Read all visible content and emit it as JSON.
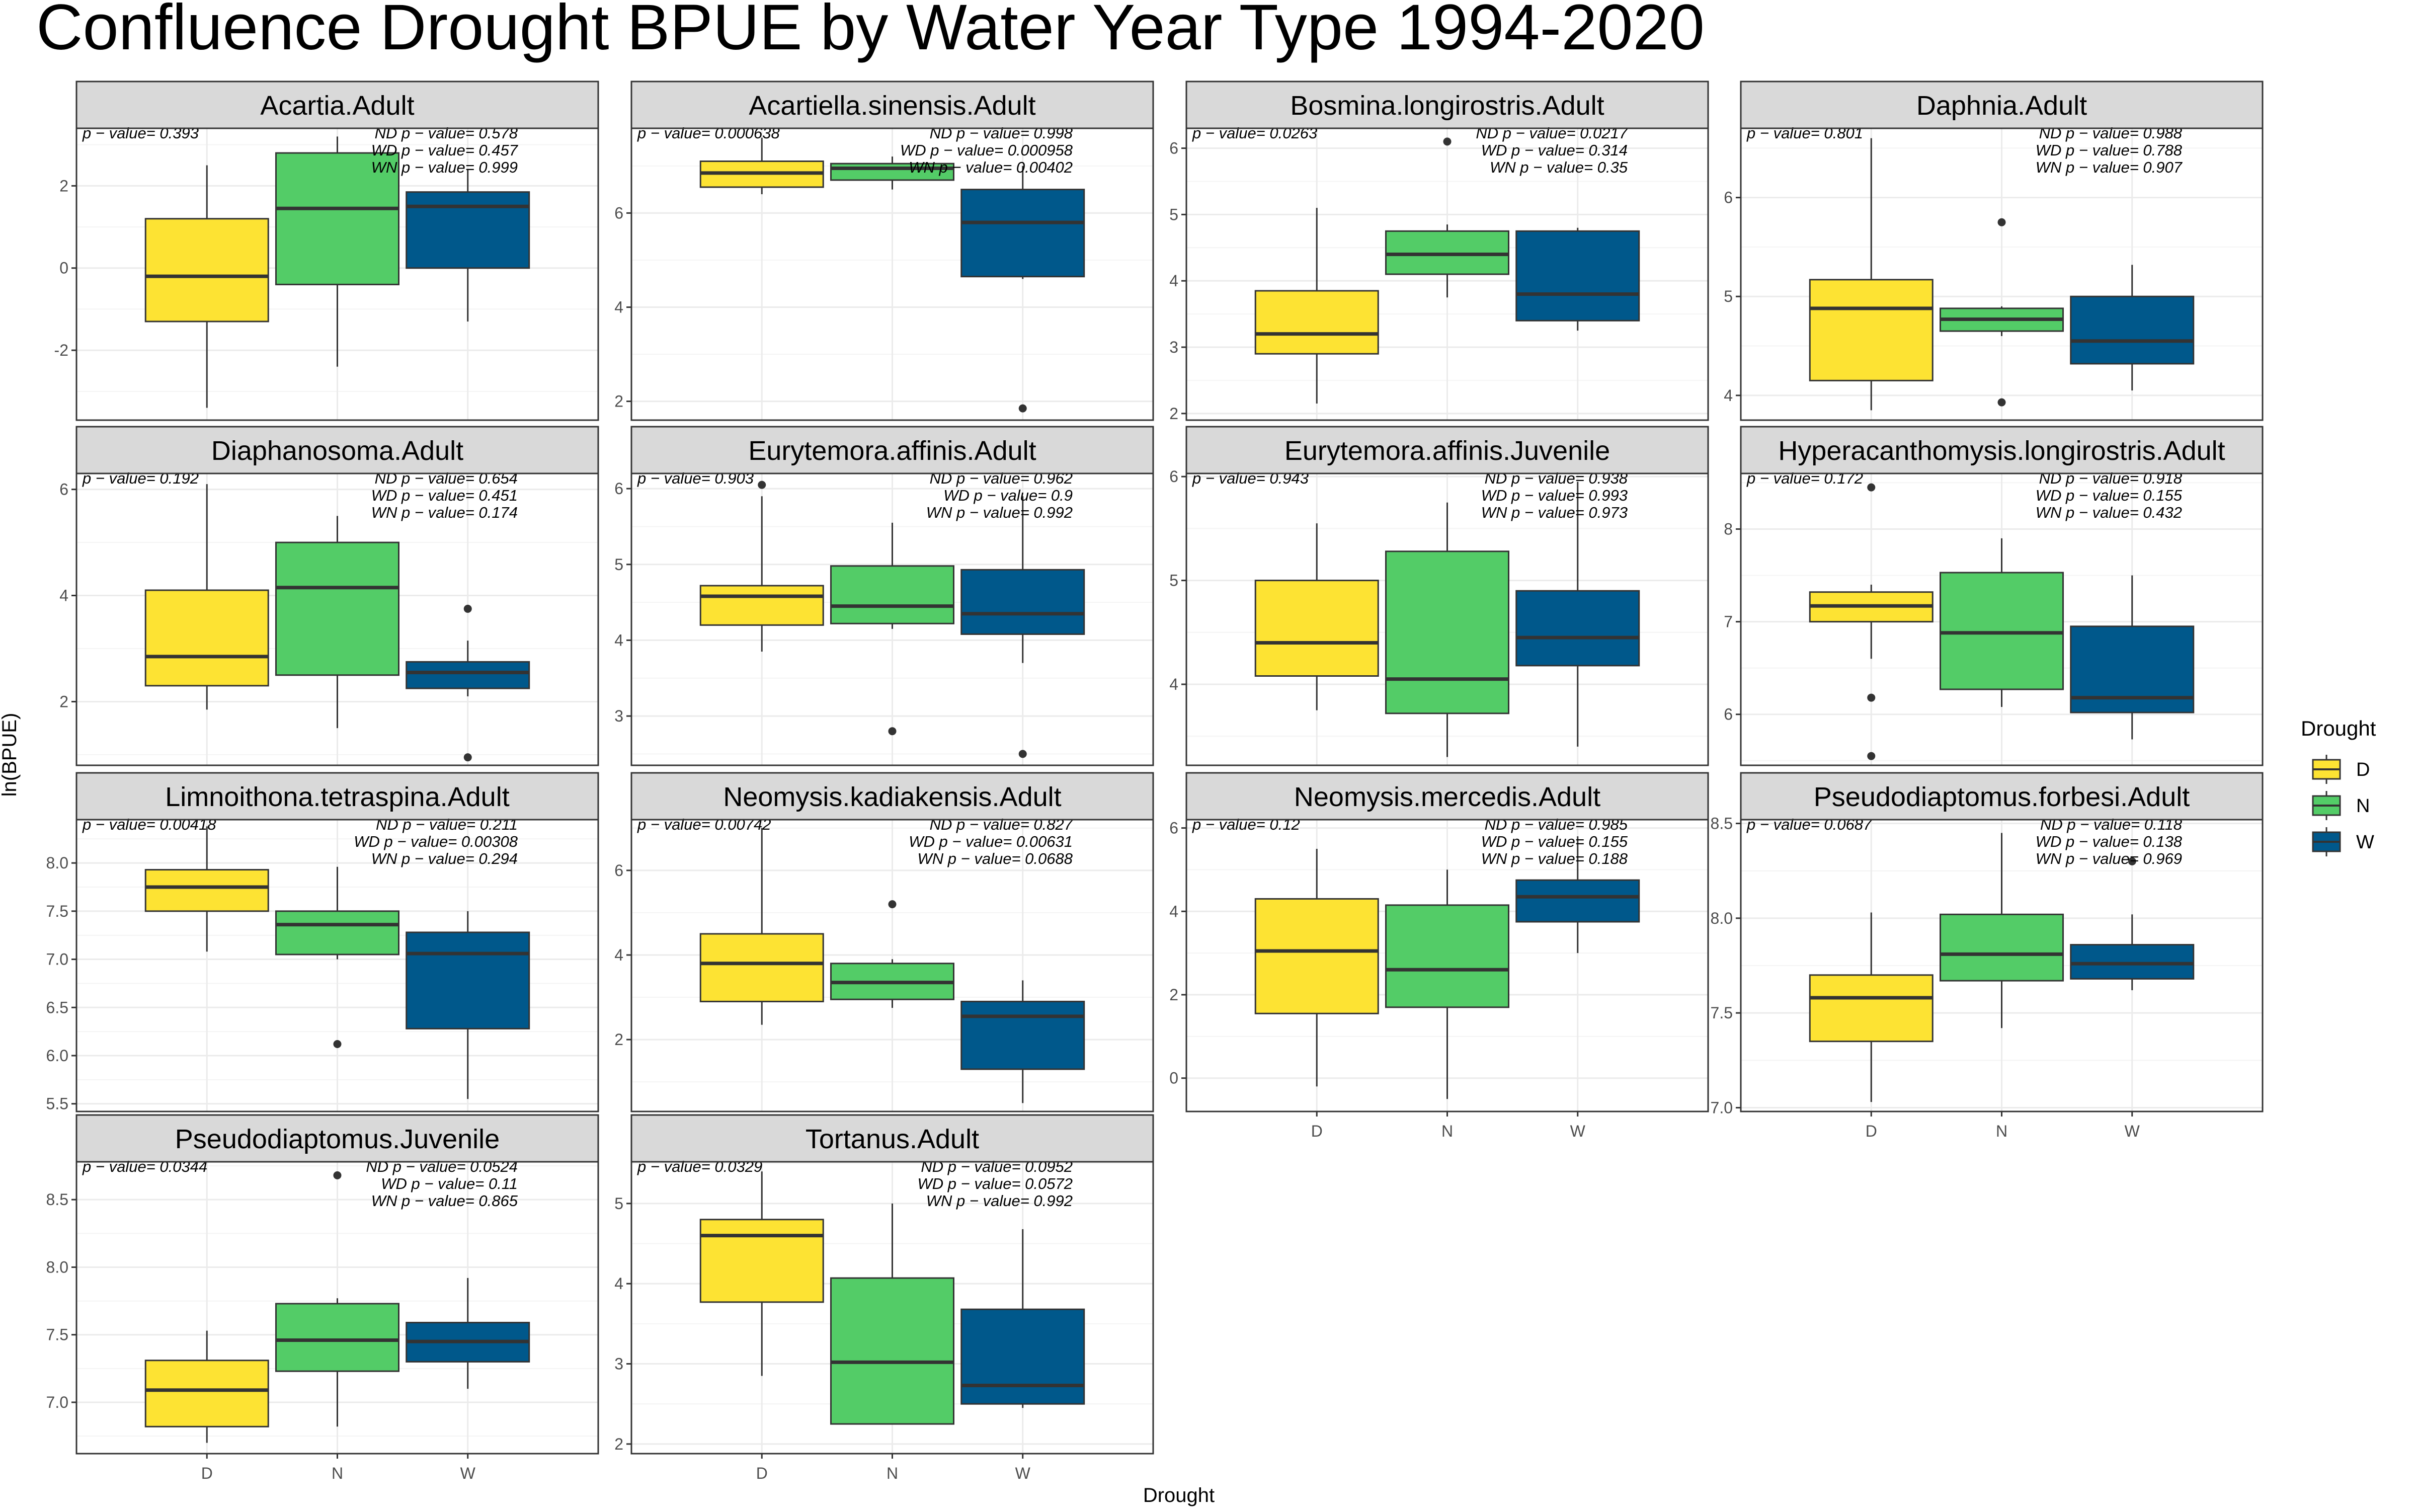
{
  "title": "Confluence Drought BPUE by Water Year Type 1994-2020",
  "ylabel": "ln(BPUE)",
  "xlabel": "Drought",
  "legend": {
    "title": "Drought",
    "items": [
      {
        "key": "D",
        "label": "D",
        "color": "#FDE333"
      },
      {
        "key": "N",
        "label": "N",
        "color": "#53CC67"
      },
      {
        "key": "W",
        "label": "W",
        "color": "#00588B"
      }
    ]
  },
  "categories": [
    "D",
    "N",
    "W"
  ],
  "chart_data": {
    "type": "boxplot",
    "title": "Confluence Drought BPUE by Water Year Type 1994-2020",
    "xlabel": "Drought",
    "ylabel": "ln(BPUE)",
    "categories": [
      "D",
      "N",
      "W"
    ],
    "legend_position": "right",
    "grid": true,
    "panels": [
      {
        "name": "Acartia.Adult",
        "ylim": [
          -3.7,
          3.4
        ],
        "ticks": [
          -2,
          0,
          2
        ],
        "tick_labels": [
          "-2",
          "0",
          "2"
        ],
        "p_value": "p − value= 0.393",
        "pairwise": [
          "ND p − value= 0.578",
          "WD p − value= 0.457",
          "WN p − value= 0.999"
        ],
        "boxes": [
          {
            "group": "D",
            "min": -3.4,
            "q1": -1.3,
            "median": -0.2,
            "q3": 1.2,
            "max": 2.5,
            "outliers": []
          },
          {
            "group": "N",
            "min": -2.4,
            "q1": -0.4,
            "median": 1.45,
            "q3": 2.8,
            "max": 3.2,
            "outliers": []
          },
          {
            "group": "W",
            "min": -1.3,
            "q1": 0.0,
            "median": 1.5,
            "q3": 1.85,
            "max": 2.4,
            "outliers": []
          }
        ]
      },
      {
        "name": "Acartiella.sinensis.Adult",
        "ylim": [
          1.6,
          7.8
        ],
        "ticks": [
          2,
          4,
          6
        ],
        "tick_labels": [
          "2",
          "4",
          "6"
        ],
        "p_value": "p − value= 0.000638",
        "pairwise": [
          "ND p − value= 0.998",
          "WD p − value= 0.000958",
          "WN p − value= 0.00402"
        ],
        "boxes": [
          {
            "group": "D",
            "min": 6.4,
            "q1": 6.55,
            "median": 6.85,
            "q3": 7.1,
            "max": 7.6,
            "outliers": []
          },
          {
            "group": "N",
            "min": 6.5,
            "q1": 6.7,
            "median": 6.95,
            "q3": 7.05,
            "max": 7.2,
            "outliers": []
          },
          {
            "group": "W",
            "min": 4.6,
            "q1": 4.65,
            "median": 5.8,
            "q3": 6.5,
            "max": 7.0,
            "outliers": [
              1.85
            ]
          }
        ]
      },
      {
        "name": "Bosmina.longirostris.Adult",
        "ylim": [
          1.9,
          6.3
        ],
        "ticks": [
          2,
          3,
          4,
          5,
          6
        ],
        "tick_labels": [
          "2",
          "3",
          "4",
          "5",
          "6"
        ],
        "p_value": "p − value= 0.0263",
        "pairwise": [
          "ND p − value= 0.0217",
          "WD p − value= 0.314",
          "WN p − value= 0.35"
        ],
        "boxes": [
          {
            "group": "D",
            "min": 2.15,
            "q1": 2.9,
            "median": 3.2,
            "q3": 3.85,
            "max": 5.1,
            "outliers": []
          },
          {
            "group": "N",
            "min": 3.75,
            "q1": 4.1,
            "median": 4.4,
            "q3": 4.75,
            "max": 4.85,
            "outliers": [
              6.1
            ]
          },
          {
            "group": "W",
            "min": 3.25,
            "q1": 3.4,
            "median": 3.8,
            "q3": 4.75,
            "max": 4.8,
            "outliers": []
          }
        ]
      },
      {
        "name": "Daphnia.Adult",
        "ylim": [
          3.75,
          6.7
        ],
        "ticks": [
          4,
          5,
          6
        ],
        "tick_labels": [
          "4",
          "5",
          "6"
        ],
        "p_value": "p − value= 0.801",
        "pairwise": [
          "ND p − value= 0.988",
          "WD p − value= 0.788",
          "WN p − value= 0.907"
        ],
        "boxes": [
          {
            "group": "D",
            "min": 3.85,
            "q1": 4.15,
            "median": 4.88,
            "q3": 5.17,
            "max": 6.6,
            "outliers": []
          },
          {
            "group": "N",
            "min": 4.6,
            "q1": 4.65,
            "median": 4.77,
            "q3": 4.88,
            "max": 4.9,
            "outliers": [
              5.75,
              3.93
            ]
          },
          {
            "group": "W",
            "min": 4.05,
            "q1": 4.32,
            "median": 4.55,
            "q3": 5.0,
            "max": 5.32,
            "outliers": []
          }
        ]
      },
      {
        "name": "Diaphanosoma.Adult",
        "ylim": [
          0.8,
          6.3
        ],
        "ticks": [
          2,
          4,
          6
        ],
        "tick_labels": [
          "2",
          "4",
          "6"
        ],
        "p_value": "p − value= 0.192",
        "pairwise": [
          "ND p − value= 0.654",
          "WD p − value= 0.451",
          "WN p − value= 0.174"
        ],
        "boxes": [
          {
            "group": "D",
            "min": 1.85,
            "q1": 2.3,
            "median": 2.85,
            "q3": 4.1,
            "max": 6.1,
            "outliers": []
          },
          {
            "group": "N",
            "min": 1.5,
            "q1": 2.5,
            "median": 4.15,
            "q3": 5.0,
            "max": 5.5,
            "outliers": []
          },
          {
            "group": "W",
            "min": 2.1,
            "q1": 2.25,
            "median": 2.55,
            "q3": 2.75,
            "max": 3.15,
            "outliers": [
              3.75,
              0.95
            ]
          }
        ]
      },
      {
        "name": "Eurytemora.affinis.Adult",
        "ylim": [
          2.35,
          6.2
        ],
        "ticks": [
          3,
          4,
          5,
          6
        ],
        "tick_labels": [
          "3",
          "4",
          "5",
          "6"
        ],
        "p_value": "p − value= 0.903",
        "pairwise": [
          "ND p − value= 0.962",
          "WD p − value= 0.9",
          "WN p − value= 0.992"
        ],
        "boxes": [
          {
            "group": "D",
            "min": 3.85,
            "q1": 4.2,
            "median": 4.58,
            "q3": 4.72,
            "max": 5.9,
            "outliers": [
              6.05
            ]
          },
          {
            "group": "N",
            "min": 4.15,
            "q1": 4.22,
            "median": 4.45,
            "q3": 4.98,
            "max": 5.55,
            "outliers": [
              2.8
            ]
          },
          {
            "group": "W",
            "min": 3.7,
            "q1": 4.08,
            "median": 4.35,
            "q3": 4.93,
            "max": 5.9,
            "outliers": [
              2.5
            ]
          }
        ]
      },
      {
        "name": "Eurytemora.affinis.Juvenile",
        "ylim": [
          3.22,
          6.03
        ],
        "ticks": [
          4,
          5,
          6
        ],
        "tick_labels": [
          "4",
          "5",
          "6"
        ],
        "p_value": "p − value= 0.943",
        "pairwise": [
          "ND p − value= 0.938",
          "WD p − value= 0.993",
          "WN p − value= 0.973"
        ],
        "boxes": [
          {
            "group": "D",
            "min": 3.75,
            "q1": 4.08,
            "median": 4.4,
            "q3": 5.0,
            "max": 5.55,
            "outliers": []
          },
          {
            "group": "N",
            "min": 3.3,
            "q1": 3.72,
            "median": 4.05,
            "q3": 5.28,
            "max": 5.75,
            "outliers": []
          },
          {
            "group": "W",
            "min": 3.4,
            "q1": 4.18,
            "median": 4.45,
            "q3": 4.9,
            "max": 5.95,
            "outliers": []
          }
        ]
      },
      {
        "name": "Hyperacanthomysis.longirostris.Adult",
        "ylim": [
          5.45,
          8.6
        ],
        "ticks": [
          6,
          7,
          8
        ],
        "tick_labels": [
          "6",
          "7",
          "8"
        ],
        "p_value": "p − value= 0.172",
        "pairwise": [
          "ND p − value= 0.918",
          "WD p − value= 0.155",
          "WN p − value= 0.432"
        ],
        "boxes": [
          {
            "group": "D",
            "min": 6.6,
            "q1": 7.0,
            "median": 7.17,
            "q3": 7.32,
            "max": 7.4,
            "outliers": [
              8.45,
              6.18,
              5.55
            ]
          },
          {
            "group": "N",
            "min": 6.08,
            "q1": 6.27,
            "median": 6.88,
            "q3": 7.53,
            "max": 7.9,
            "outliers": []
          },
          {
            "group": "W",
            "min": 5.73,
            "q1": 6.02,
            "median": 6.18,
            "q3": 6.95,
            "max": 7.5,
            "outliers": []
          }
        ]
      },
      {
        "name": "Limnoithona.tetraspina.Adult",
        "ylim": [
          5.42,
          8.45
        ],
        "ticks": [
          5.5,
          6.0,
          6.5,
          7.0,
          7.5,
          8.0
        ],
        "tick_labels": [
          "5.5",
          "6.0",
          "6.5",
          "7.0",
          "7.5",
          "8.0"
        ],
        "p_value": "p − value= 0.00418",
        "pairwise": [
          "ND p − value= 0.211",
          "WD p − value= 0.00308",
          "WN p − value= 0.294"
        ],
        "boxes": [
          {
            "group": "D",
            "min": 7.08,
            "q1": 7.5,
            "median": 7.75,
            "q3": 7.93,
            "max": 8.38,
            "outliers": []
          },
          {
            "group": "N",
            "min": 7.0,
            "q1": 7.05,
            "median": 7.36,
            "q3": 7.5,
            "max": 7.96,
            "outliers": [
              6.12
            ]
          },
          {
            "group": "W",
            "min": 5.55,
            "q1": 6.28,
            "median": 7.06,
            "q3": 7.28,
            "max": 7.5,
            "outliers": []
          }
        ]
      },
      {
        "name": "Neomysis.kadiakensis.Adult",
        "ylim": [
          0.3,
          7.2
        ],
        "ticks": [
          2,
          4,
          6
        ],
        "tick_labels": [
          "2",
          "4",
          "6"
        ],
        "p_value": "p − value= 0.00742",
        "pairwise": [
          "ND p − value= 0.827",
          "WD p − value= 0.00631",
          "WN p − value= 0.0688"
        ],
        "boxes": [
          {
            "group": "D",
            "min": 2.35,
            "q1": 2.9,
            "median": 3.8,
            "q3": 4.5,
            "max": 7.0,
            "outliers": []
          },
          {
            "group": "N",
            "min": 2.75,
            "q1": 2.95,
            "median": 3.35,
            "q3": 3.8,
            "max": 3.9,
            "outliers": [
              5.2
            ]
          },
          {
            "group": "W",
            "min": 0.5,
            "q1": 1.3,
            "median": 2.55,
            "q3": 2.9,
            "max": 3.4,
            "outliers": []
          }
        ]
      },
      {
        "name": "Neomysis.mercedis.Adult",
        "ylim": [
          -0.8,
          6.2
        ],
        "ticks": [
          0,
          2,
          4,
          6
        ],
        "tick_labels": [
          "0",
          "2",
          "4",
          "6"
        ],
        "p_value": "p − value= 0.12",
        "pairwise": [
          "ND p − value= 0.985",
          "WD p − value= 0.155",
          "WN p − value= 0.188"
        ],
        "boxes": [
          {
            "group": "D",
            "min": -0.2,
            "q1": 1.55,
            "median": 3.05,
            "q3": 4.3,
            "max": 5.5,
            "outliers": []
          },
          {
            "group": "N",
            "min": -0.5,
            "q1": 1.7,
            "median": 2.6,
            "q3": 4.15,
            "max": 5.0,
            "outliers": []
          },
          {
            "group": "W",
            "min": 3.0,
            "q1": 3.75,
            "median": 4.35,
            "q3": 4.75,
            "max": 5.8,
            "outliers": []
          }
        ]
      },
      {
        "name": "Pseudodiaptomus.forbesi.Adult",
        "ylim": [
          6.98,
          8.52
        ],
        "ticks": [
          7.0,
          7.5,
          8.0,
          8.5
        ],
        "tick_labels": [
          "7.0",
          "7.5",
          "8.0",
          "8.5"
        ],
        "p_value": "p − value= 0.0687",
        "pairwise": [
          "ND p − value= 0.118",
          "WD p − value= 0.138",
          "WN p − value= 0.969"
        ],
        "boxes": [
          {
            "group": "D",
            "min": 7.03,
            "q1": 7.35,
            "median": 7.58,
            "q3": 7.7,
            "max": 8.03,
            "outliers": []
          },
          {
            "group": "N",
            "min": 7.42,
            "q1": 7.67,
            "median": 7.81,
            "q3": 8.02,
            "max": 8.45,
            "outliers": []
          },
          {
            "group": "W",
            "min": 7.62,
            "q1": 7.68,
            "median": 7.76,
            "q3": 7.86,
            "max": 8.02,
            "outliers": [
              8.3
            ]
          }
        ]
      },
      {
        "name": "Pseudodiaptomus.Juvenile",
        "ylim": [
          6.62,
          8.78
        ],
        "ticks": [
          7.0,
          7.5,
          8.0,
          8.5
        ],
        "tick_labels": [
          "7.0",
          "7.5",
          "8.0",
          "8.5"
        ],
        "p_value": "p − value= 0.0344",
        "pairwise": [
          "ND p − value= 0.0524",
          "WD p − value= 0.11",
          "WN p − value= 0.865"
        ],
        "boxes": [
          {
            "group": "D",
            "min": 6.7,
            "q1": 6.82,
            "median": 7.09,
            "q3": 7.31,
            "max": 7.53,
            "outliers": []
          },
          {
            "group": "N",
            "min": 6.82,
            "q1": 7.23,
            "median": 7.46,
            "q3": 7.73,
            "max": 7.77,
            "outliers": [
              8.68
            ]
          },
          {
            "group": "W",
            "min": 7.1,
            "q1": 7.3,
            "median": 7.45,
            "q3": 7.59,
            "max": 7.92,
            "outliers": []
          }
        ]
      },
      {
        "name": "Tortanus.Adult",
        "ylim": [
          1.88,
          5.52
        ],
        "ticks": [
          2,
          3,
          4,
          5
        ],
        "tick_labels": [
          "2",
          "3",
          "4",
          "5"
        ],
        "p_value": "p − value= 0.0329",
        "pairwise": [
          "ND p − value= 0.0952",
          "WD p − value= 0.0572",
          "WN p − value= 0.992"
        ],
        "boxes": [
          {
            "group": "D",
            "min": 2.85,
            "q1": 3.77,
            "median": 4.6,
            "q3": 4.8,
            "max": 5.4,
            "outliers": []
          },
          {
            "group": "N",
            "min": 2.25,
            "q1": 2.25,
            "median": 3.02,
            "q3": 4.07,
            "max": 5.0,
            "outliers": []
          },
          {
            "group": "W",
            "min": 2.45,
            "q1": 2.5,
            "median": 2.73,
            "q3": 3.68,
            "max": 4.68,
            "outliers": []
          }
        ]
      }
    ]
  }
}
